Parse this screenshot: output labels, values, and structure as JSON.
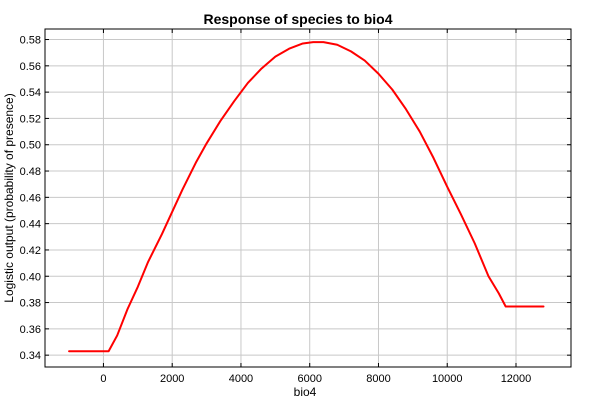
{
  "chart_data": {
    "type": "line",
    "title": "Response of species to bio4",
    "xlabel": "bio4",
    "ylabel": "Logistic output (probability of presence)",
    "xlim": [
      -1700,
      13600
    ],
    "ylim": [
      0.331,
      0.588
    ],
    "x_ticks": [
      0,
      2000,
      4000,
      6000,
      8000,
      10000,
      12000
    ],
    "y_ticks": [
      0.34,
      0.36,
      0.38,
      0.4,
      0.42,
      0.44,
      0.46,
      0.48,
      0.5,
      0.52,
      0.54,
      0.56,
      0.58
    ],
    "y_tick_labels": [
      "0.34",
      "0.36",
      "0.38",
      "0.40",
      "0.42",
      "0.44",
      "0.46",
      "0.48",
      "0.50",
      "0.52",
      "0.54",
      "0.56",
      "0.58"
    ],
    "x_tick_labels": [
      "0",
      "2000",
      "4000",
      "6000",
      "8000",
      "10000",
      "12000"
    ],
    "grid": true,
    "line_color": "#ff0000",
    "series": [
      {
        "x": [
          -1000,
          150,
          400,
          700,
          1000,
          1300,
          1700,
          2000,
          2300,
          2700,
          3000,
          3400,
          3800,
          4200,
          4600,
          5000,
          5400,
          5800,
          6100,
          6400,
          6800,
          7200,
          7600,
          8000,
          8400,
          8800,
          9200,
          9600,
          10000,
          10400,
          10800,
          11200,
          11500,
          11700,
          12000,
          12800
        ],
        "y": [
          0.343,
          0.343,
          0.355,
          0.375,
          0.392,
          0.411,
          0.432,
          0.449,
          0.466,
          0.487,
          0.501,
          0.518,
          0.533,
          0.547,
          0.558,
          0.567,
          0.573,
          0.577,
          0.578,
          0.578,
          0.576,
          0.571,
          0.564,
          0.554,
          0.542,
          0.527,
          0.51,
          0.49,
          0.468,
          0.447,
          0.425,
          0.4,
          0.387,
          0.377,
          0.377,
          0.377
        ]
      }
    ]
  }
}
